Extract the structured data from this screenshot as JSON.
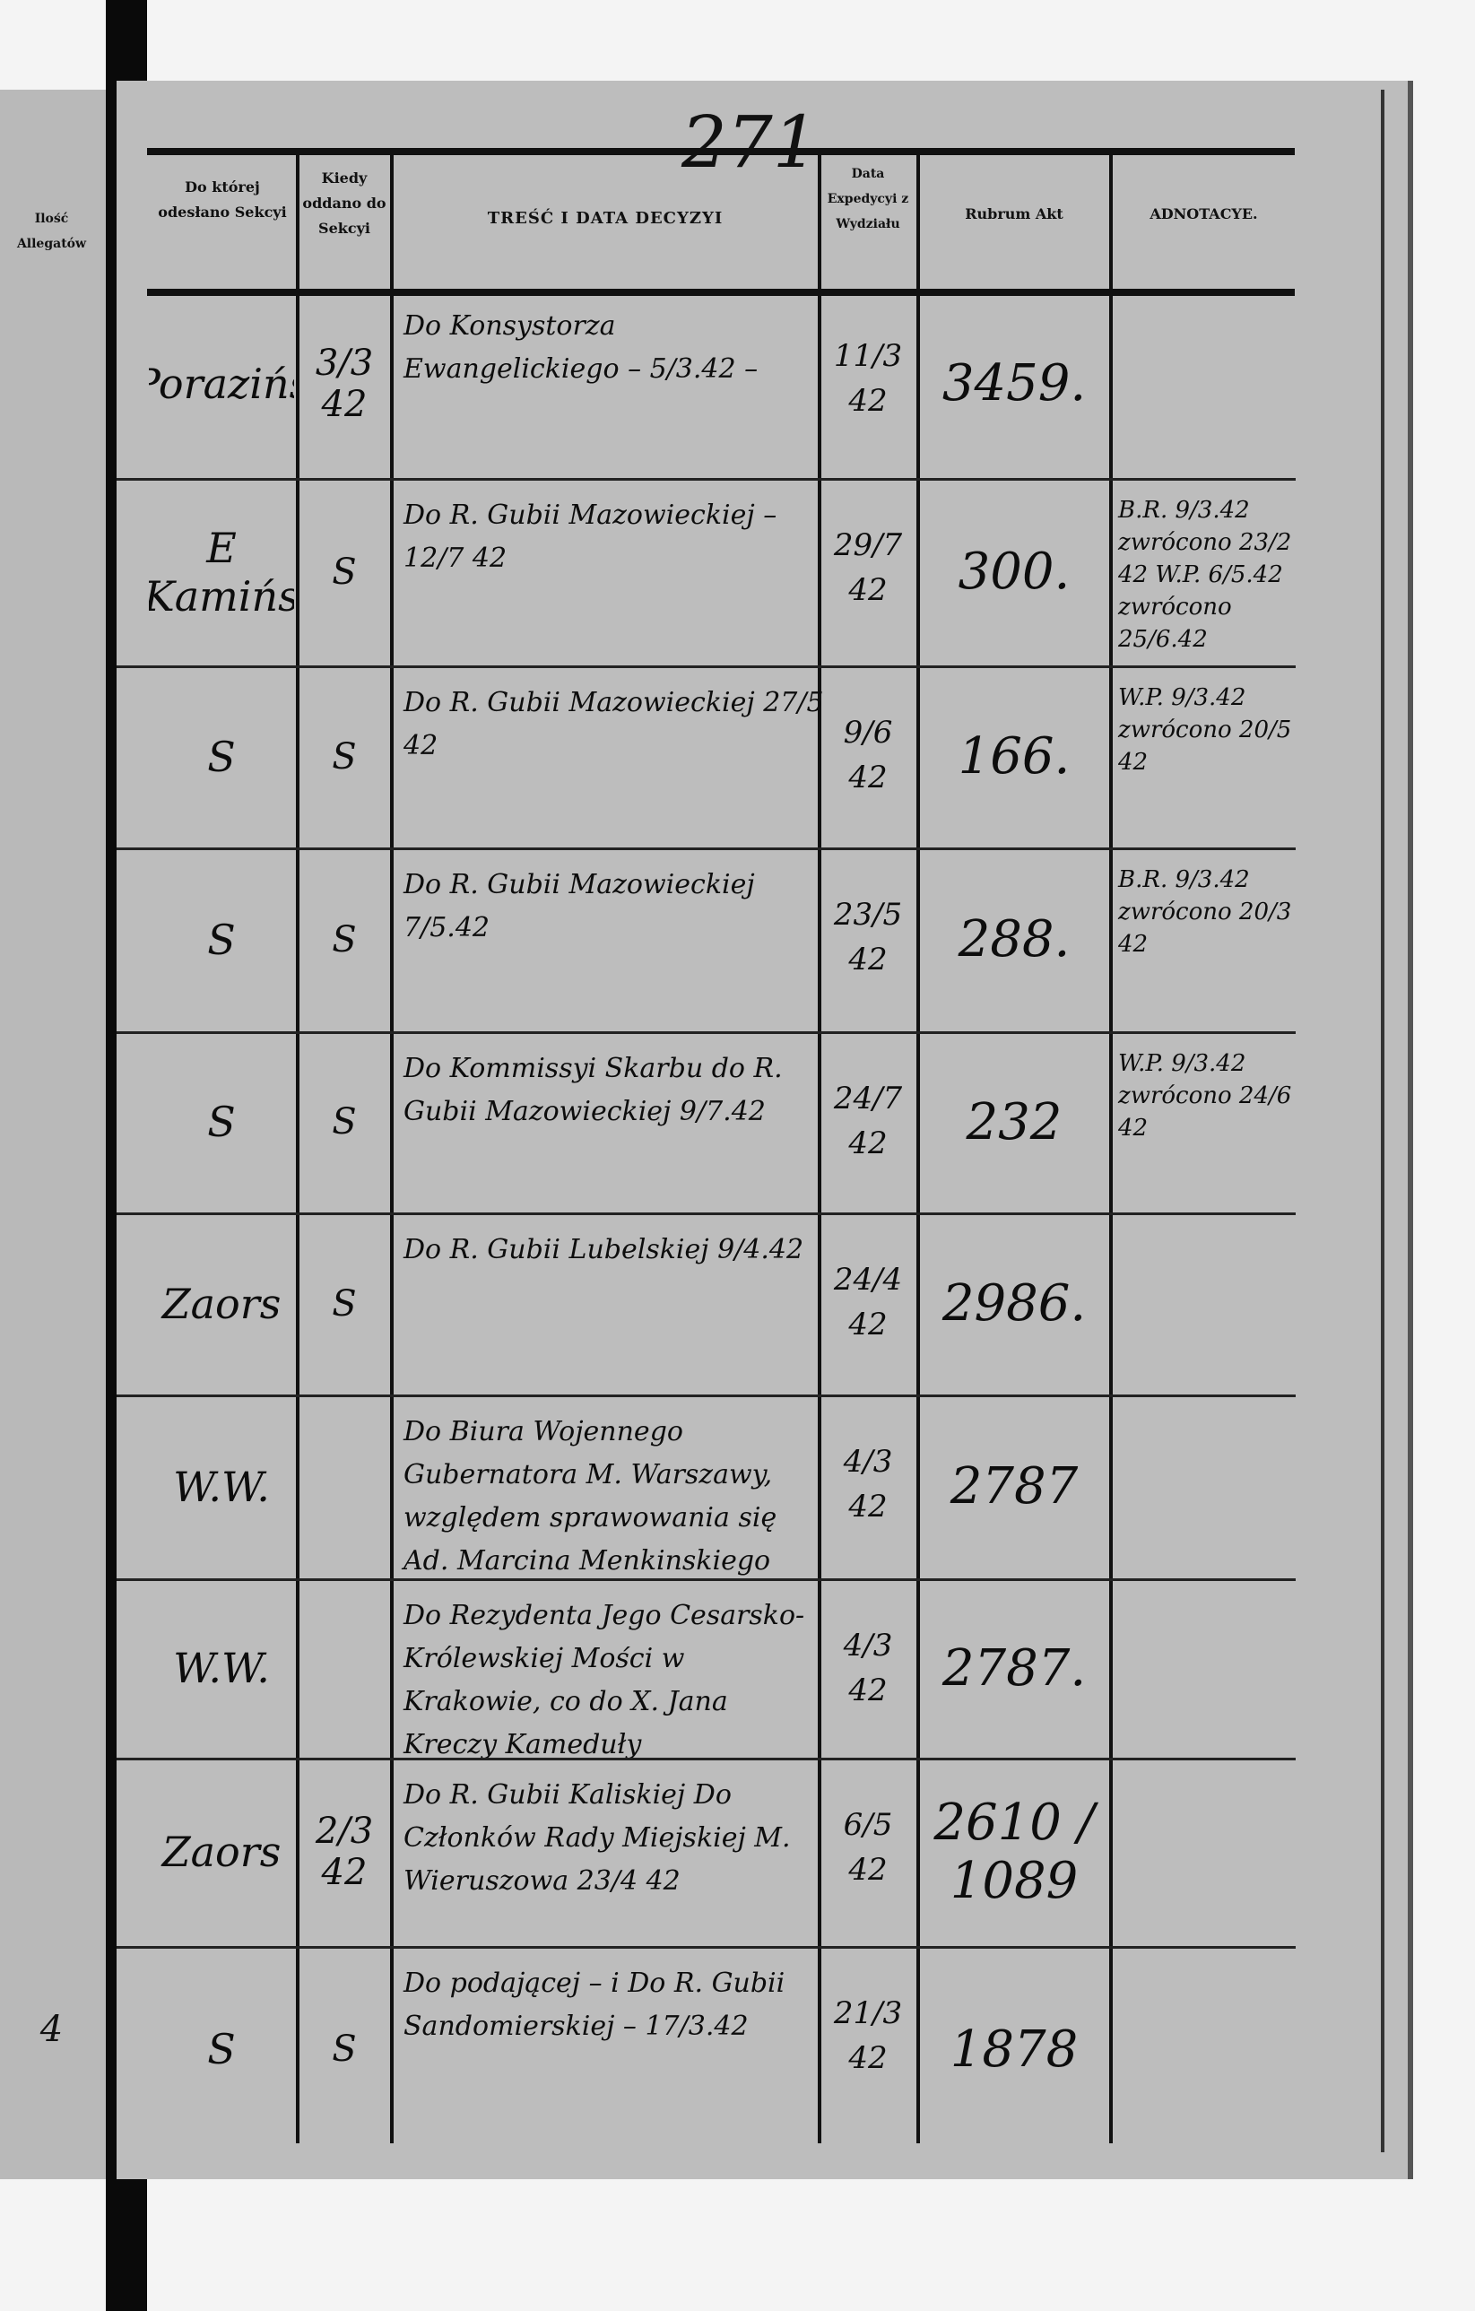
{
  "page_number": "271",
  "left_page": {
    "header": "Ilość Allegatów",
    "last_row_value": "4"
  },
  "headers": {
    "section": "Do której odesłano Sekcyi",
    "when": "Kiedy oddano do Sekcyi",
    "content": "TREŚĆ I DATA DECYZYI",
    "expedition": "Data Expedycyi z Wydziału",
    "rubrum": "Rubrum Akt",
    "annotations": "ADNOTACYE."
  },
  "rows": [
    {
      "section": "Porazińs",
      "when": "3/3 42",
      "content": "Do Konsystorza Ewangelickiego – 5/3.42 –",
      "expedition": "11/3 42",
      "rubrum": "3459.",
      "annotation": ""
    },
    {
      "section": "E Kamińs",
      "when": "S",
      "content": "Do R. Gubii Mazowieckiej – 12/7 42",
      "expedition": "29/7 42",
      "rubrum": "300.",
      "annotation": "B.R. 9/3.42 zwrócono 23/2 42 W.P. 6/5.42 zwrócono 25/6.42"
    },
    {
      "section": "S",
      "when": "S",
      "content": "Do R. Gubii Mazowieckiej 27/5 42",
      "expedition": "9/6 42",
      "rubrum": "166.",
      "annotation": "W.P. 9/3.42 zwrócono 20/5 42"
    },
    {
      "section": "S",
      "when": "S",
      "content": "Do R. Gubii Mazowieckiej 7/5.42",
      "expedition": "23/5 42",
      "rubrum": "288.",
      "annotation": "B.R. 9/3.42 zwrócono 20/3 42"
    },
    {
      "section": "S",
      "when": "S",
      "content": "Do Kommissyi Skarbu do R. Gubii Mazowieckiej 9/7.42",
      "expedition": "24/7 42",
      "rubrum": "232",
      "annotation": "W.P. 9/3.42 zwrócono 24/6 42"
    },
    {
      "section": "Zaors",
      "when": "S",
      "content": "Do R. Gubii Lubelskiej 9/4.42",
      "expedition": "24/4 42",
      "rubrum": "2986.",
      "annotation": ""
    },
    {
      "section": "W.W.",
      "when": "",
      "content": "Do Biura Wojennego Gubernatora M. Warszawy, względem sprawowania się Ad. Marcina Menkinskiego",
      "expedition": "4/3 42",
      "rubrum": "2787",
      "annotation": ""
    },
    {
      "section": "W.W.",
      "when": "",
      "content": "Do Rezydenta Jego Cesarsko-Królewskiej Mości w Krakowie, co do X. Jana Kreczy Kameduły",
      "expedition": "4/3 42",
      "rubrum": "2787.",
      "annotation": ""
    },
    {
      "section": "Zaors",
      "when": "2/3 42",
      "content": "Do R. Gubii Kaliskiej Do Członków Rady Miejskiej M. Wieruszowa 23/4 42",
      "expedition": "6/5 42",
      "rubrum": "2610 / 1089",
      "annotation": ""
    },
    {
      "section": "S",
      "when": "S",
      "content": "Do podającej – i Do R. Gubii Sandomierskiej – 17/3.42",
      "expedition": "21/3 42",
      "rubrum": "1878",
      "annotation": ""
    }
  ]
}
